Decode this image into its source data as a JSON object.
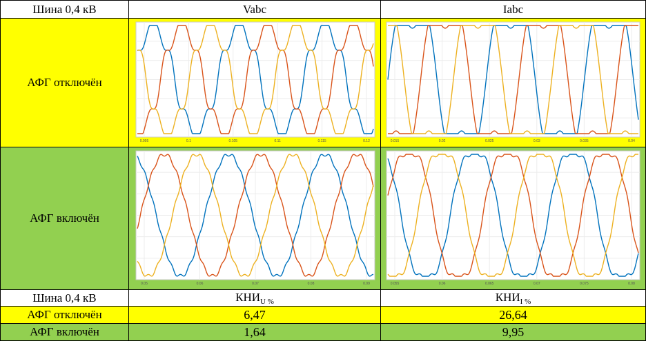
{
  "header": {
    "bus": "Шина 0,4 кВ",
    "col_v": "Vabc",
    "col_i": "Iabc"
  },
  "rows": {
    "off_label": "АФГ отключён",
    "on_label": "АФГ включён"
  },
  "bottom": {
    "bus": "Шина 0,4 кВ",
    "kni_base": "КНИ",
    "kni_u_sub": "U %",
    "kni_i_sub": "I %",
    "off_label": "АФГ отключён",
    "on_label": "АФГ включён",
    "off_u": "6,47",
    "off_i": "26,64",
    "on_u": "1,64",
    "on_i": "9,95"
  },
  "colors": {
    "yellow": "#ffff00",
    "green": "#92d050",
    "phase_a": "#0072bd",
    "phase_b": "#d95319",
    "phase_c": "#edb120"
  },
  "plots": {
    "v_off_xticks": [
      "0.095",
      "0.1",
      "0.105",
      "0.11",
      "0.115",
      "0.12"
    ],
    "i_off_xticks": [
      "0.015",
      "0.02",
      "0.025",
      "0.03",
      "0.035",
      "0.04"
    ],
    "v_on_xticks": [
      "0.05",
      "0.06",
      "0.07",
      "0.08",
      "0.09"
    ],
    "i_on_xticks": [
      "0.055",
      "0.06",
      "0.065",
      "0.07",
      "0.075",
      "0.08"
    ]
  }
}
